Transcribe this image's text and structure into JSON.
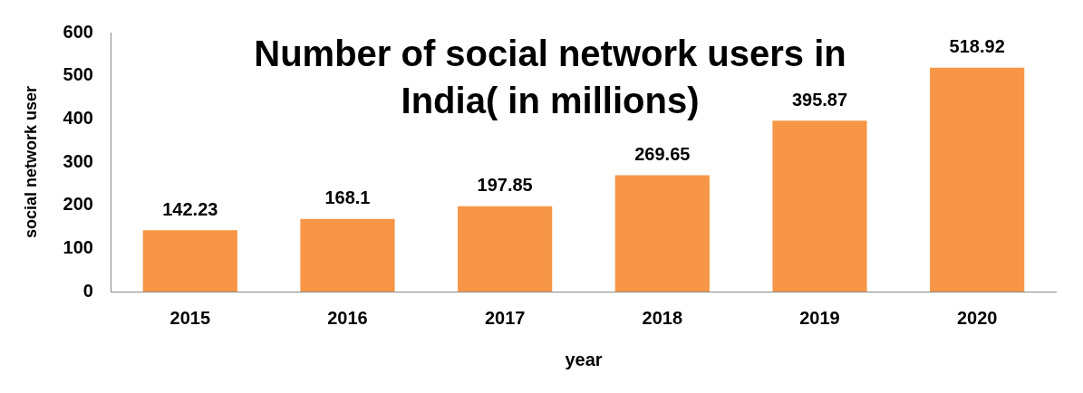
{
  "chart_data": {
    "type": "bar",
    "title": "Number of social network users in India( in millions)",
    "xlabel": "year",
    "ylabel": "social network user",
    "categories": [
      "2015",
      "2016",
      "2017",
      "2018",
      "2019",
      "2020"
    ],
    "values": [
      142.23,
      168.1,
      197.85,
      269.65,
      395.87,
      518.92
    ],
    "color": "#f79646",
    "ylim": [
      0,
      600
    ],
    "yticks": [
      0,
      100,
      200,
      300,
      400,
      500,
      600
    ],
    "grid": false,
    "data_labels": true
  }
}
